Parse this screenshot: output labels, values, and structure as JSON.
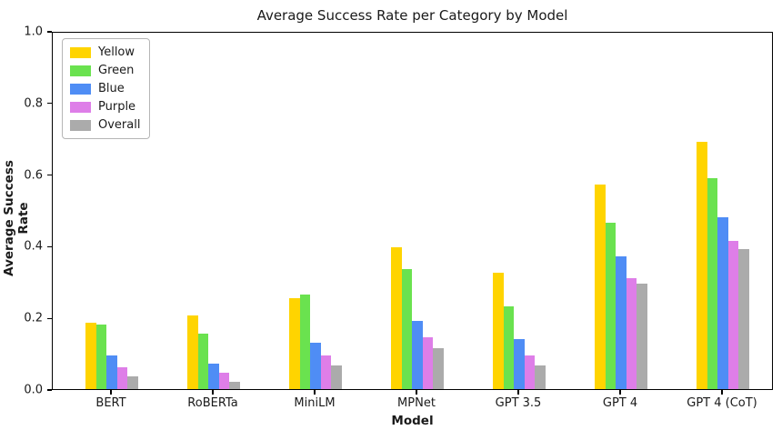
{
  "chart_data": {
    "type": "bar",
    "title": "Average Success Rate per Category by Model",
    "xlabel": "Model",
    "ylabel": "Average Success Rate",
    "ylim": [
      0,
      1.0
    ],
    "ytick_labels": [
      "0.0",
      "0.2",
      "0.4",
      "0.6",
      "0.8",
      "1.0"
    ],
    "grid": false,
    "legend_position": "upper left",
    "background_color": "#ffffff",
    "categories": [
      "BERT",
      "RoBERTa",
      "MiniLM",
      "MPNet",
      "GPT 3.5",
      "GPT 4",
      "GPT 4 (CoT)"
    ],
    "series": [
      {
        "name": "Yellow",
        "color": "#ffd400",
        "values": [
          0.185,
          0.205,
          0.255,
          0.395,
          0.325,
          0.57,
          0.69
        ]
      },
      {
        "name": "Green",
        "color": "#6ae24f",
        "values": [
          0.18,
          0.155,
          0.265,
          0.335,
          0.23,
          0.465,
          0.59
        ]
      },
      {
        "name": "Blue",
        "color": "#4f8df5",
        "values": [
          0.095,
          0.07,
          0.13,
          0.19,
          0.14,
          0.37,
          0.48
        ]
      },
      {
        "name": "Purple",
        "color": "#de7ee8",
        "values": [
          0.06,
          0.045,
          0.095,
          0.145,
          0.095,
          0.31,
          0.415
        ]
      },
      {
        "name": "Overall",
        "color": "#ababab",
        "values": [
          0.035,
          0.02,
          0.065,
          0.115,
          0.065,
          0.295,
          0.39
        ]
      }
    ]
  }
}
